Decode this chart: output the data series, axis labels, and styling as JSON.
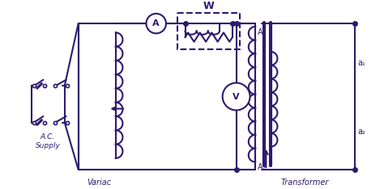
{
  "bg_color": "#ffffff",
  "line_color": "#2d1b6e",
  "line_width": 1.5,
  "fig_width": 4.74,
  "fig_height": 2.34,
  "dpi": 100,
  "labels": {
    "AC_Supply": "A.C.\nSupply",
    "Variac": "Variac",
    "Transformer": "Transformer",
    "W": "W",
    "A1": "A₁",
    "A2": "A₂",
    "a1": "a₁",
    "a2": "a₂"
  }
}
